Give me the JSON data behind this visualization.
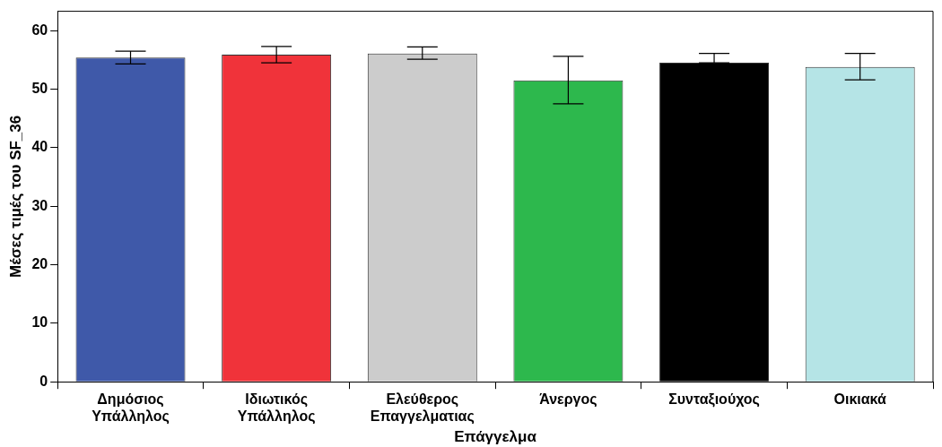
{
  "chart_data": {
    "type": "bar",
    "xlabel": "Επάγγελμα",
    "ylabel": "Μέσες τιμές του SF_36",
    "categories": [
      "Δημόσιος Υπάλληλος",
      "Ιδιωτικός Υπάλληλος",
      "Ελεύθερος Επαγγελματιας",
      "Άνεργος",
      "Συνταξιούχος",
      "Οικιακά"
    ],
    "values": [
      55.4,
      55.9,
      56.1,
      51.5,
      54.5,
      53.8
    ],
    "colors": [
      "#3f59a9",
      "#f0333a",
      "#cccccc",
      "#2db84d",
      "#000000",
      "#b5e4e6"
    ],
    "errors": [
      [
        54.3,
        56.5
      ],
      [
        54.5,
        57.3
      ],
      [
        55.1,
        57.2
      ],
      [
        47.5,
        55.6
      ],
      [
        54.5,
        56.1
      ],
      [
        51.6,
        56.1
      ]
    ],
    "ylim": [
      0,
      63.3
    ],
    "yticks": [
      0,
      10,
      20,
      30,
      40,
      50,
      60
    ],
    "grid": false,
    "legend": false
  }
}
